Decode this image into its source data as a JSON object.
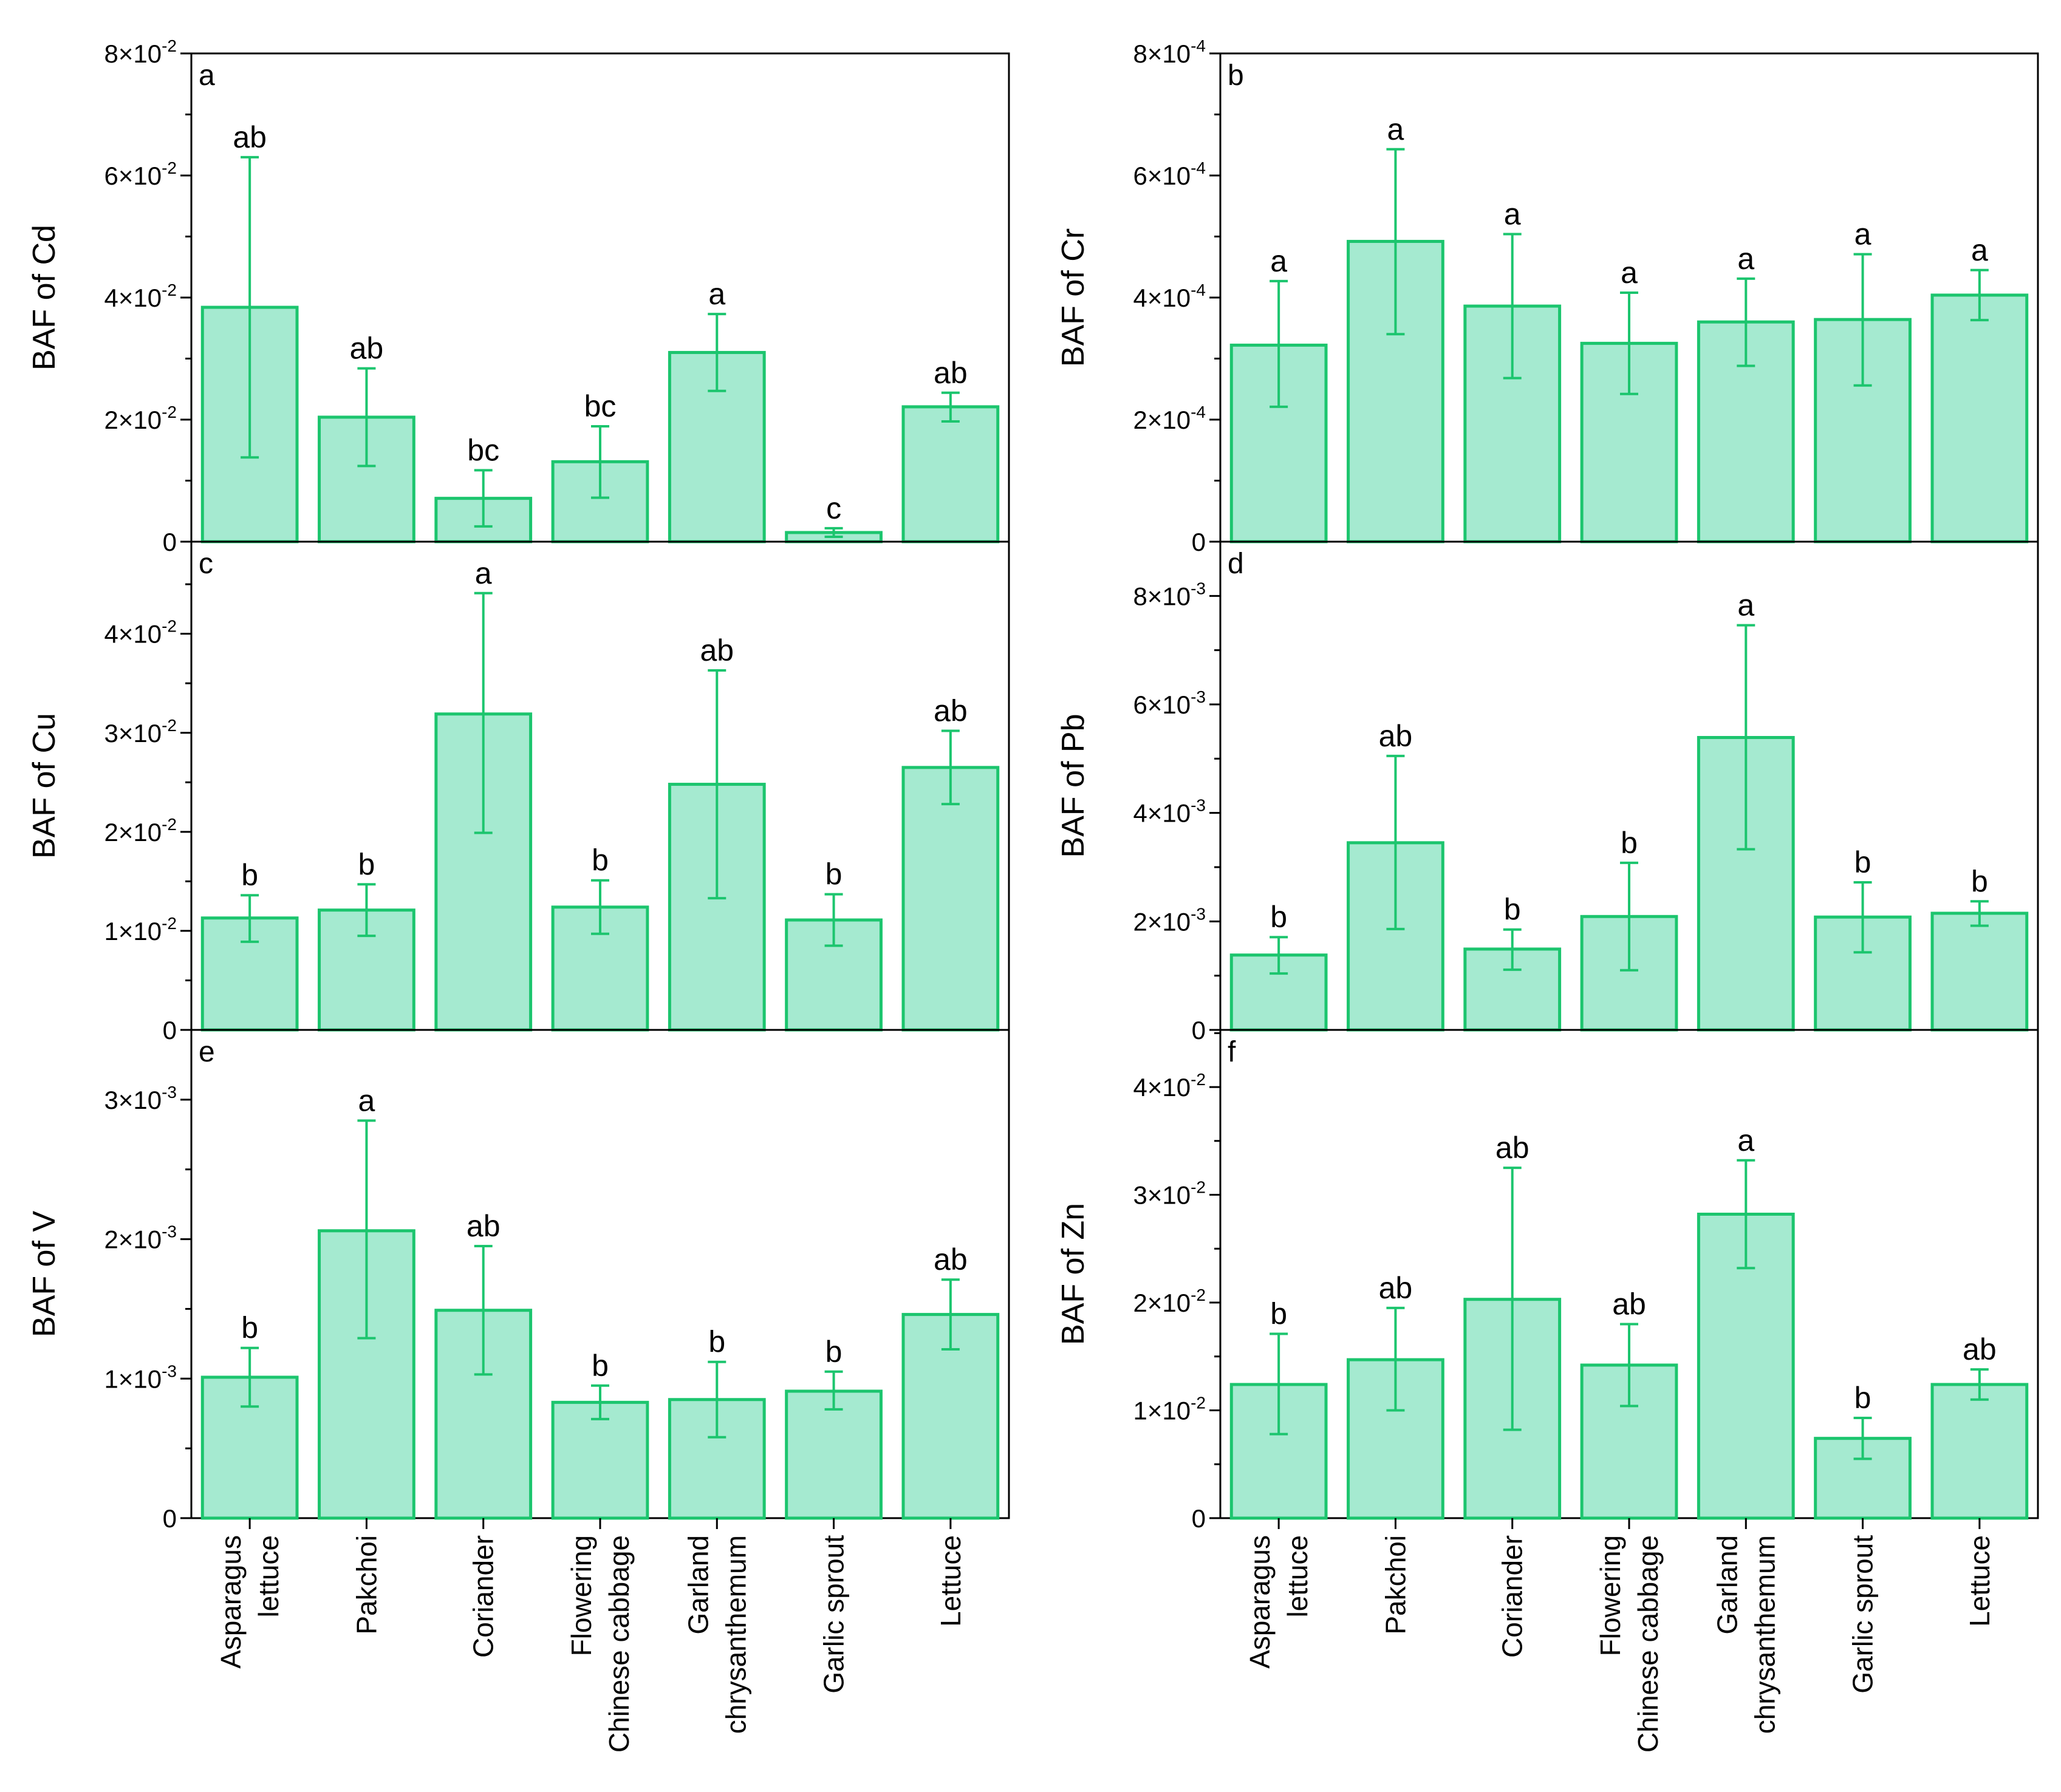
{
  "colors": {
    "bar_fill": "#a5ead0",
    "bar_stroke": "#1cc56e",
    "axis": "#000000"
  },
  "x_categories": [
    [
      "Asparagus",
      "lettuce"
    ],
    [
      "Pakchoi"
    ],
    [
      "Coriander"
    ],
    [
      "Flowering",
      "Chinese cabbage"
    ],
    [
      "Garland",
      "chrysanthemum"
    ],
    [
      "Garlic sprout"
    ],
    [
      "Lettuce"
    ]
  ],
  "chart_data": [
    {
      "type": "bar",
      "panel": "a",
      "ylabel": "BAF of Cd",
      "ylim": [
        0,
        0.08
      ],
      "yticks": [
        {
          "v": 0,
          "m": "0",
          "e": ""
        },
        {
          "v": 0.02,
          "m": "2×10",
          "e": "-2"
        },
        {
          "v": 0.04,
          "m": "4×10",
          "e": "-2"
        },
        {
          "v": 0.06,
          "m": "6×10",
          "e": "-2"
        },
        {
          "v": 0.08,
          "m": "8×10",
          "e": "-2"
        }
      ],
      "categories": [
        "Asparagus lettuce",
        "Pakchoi",
        "Coriander",
        "Flowering Chinese cabbage",
        "Garland chrysanthemum",
        "Garlic sprout",
        "Lettuce"
      ],
      "values": [
        0.0384,
        0.0204,
        0.0071,
        0.0131,
        0.031,
        0.0015,
        0.0221
      ],
      "error_low": [
        0.0138,
        0.0124,
        0.0025,
        0.0072,
        0.0247,
        0.0008,
        0.0197
      ],
      "error_high": [
        0.063,
        0.0284,
        0.0117,
        0.0189,
        0.0373,
        0.0022,
        0.0244
      ],
      "significance": [
        "ab",
        "ab",
        "bc",
        "bc",
        "a",
        "c",
        "ab"
      ]
    },
    {
      "type": "bar",
      "panel": "b",
      "ylabel": "BAF of Cr",
      "ylim": [
        0,
        0.0008
      ],
      "yticks": [
        {
          "v": 0,
          "m": "0",
          "e": ""
        },
        {
          "v": 0.0002,
          "m": "2×10",
          "e": "-4"
        },
        {
          "v": 0.0004,
          "m": "4×10",
          "e": "-4"
        },
        {
          "v": 0.0006,
          "m": "6×10",
          "e": "-4"
        },
        {
          "v": 0.0008,
          "m": "8×10",
          "e": "-4"
        }
      ],
      "categories": [
        "Asparagus lettuce",
        "Pakchoi",
        "Coriander",
        "Flowering Chinese cabbage",
        "Garland chrysanthemum",
        "Garlic sprout",
        "Lettuce"
      ],
      "values": [
        0.000322,
        0.000492,
        0.000386,
        0.000325,
        0.00036,
        0.000364,
        0.000404
      ],
      "error_low": [
        0.000221,
        0.00034,
        0.000268,
        0.000242,
        0.000288,
        0.000256,
        0.000363
      ],
      "error_high": [
        0.000427,
        0.000643,
        0.000504,
        0.000408,
        0.000431,
        0.000471,
        0.000445
      ],
      "significance": [
        "a",
        "a",
        "a",
        "a",
        "a",
        "a",
        "a"
      ]
    },
    {
      "type": "bar",
      "panel": "c",
      "ylabel": "BAF of Cu",
      "ylim": [
        0,
        0.0493
      ],
      "yticks": [
        {
          "v": 0,
          "m": "0",
          "e": ""
        },
        {
          "v": 0.01,
          "m": "1×10",
          "e": "-2"
        },
        {
          "v": 0.02,
          "m": "2×10",
          "e": "-2"
        },
        {
          "v": 0.03,
          "m": "3×10",
          "e": "-2"
        },
        {
          "v": 0.04,
          "m": "4×10",
          "e": "-2"
        }
      ],
      "categories": [
        "Asparagus lettuce",
        "Pakchoi",
        "Coriander",
        "Flowering Chinese cabbage",
        "Garland chrysanthemum",
        "Garlic sprout",
        "Lettuce"
      ],
      "values": [
        0.0113,
        0.0121,
        0.0319,
        0.0124,
        0.0248,
        0.0111,
        0.0265
      ],
      "error_low": [
        0.0089,
        0.0095,
        0.0199,
        0.0097,
        0.0133,
        0.0085,
        0.0228
      ],
      "error_high": [
        0.0136,
        0.0147,
        0.0441,
        0.0151,
        0.0363,
        0.0137,
        0.0302
      ],
      "significance": [
        "b",
        "b",
        "a",
        "b",
        "ab",
        "b",
        "ab"
      ]
    },
    {
      "type": "bar",
      "panel": "d",
      "ylabel": "BAF of Pb",
      "ylim": [
        0,
        0.009
      ],
      "yticks": [
        {
          "v": 0,
          "m": "0",
          "e": ""
        },
        {
          "v": 0.002,
          "m": "2×10",
          "e": "-3"
        },
        {
          "v": 0.004,
          "m": "4×10",
          "e": "-3"
        },
        {
          "v": 0.006,
          "m": "6×10",
          "e": "-3"
        },
        {
          "v": 0.008,
          "m": "8×10",
          "e": "-3"
        }
      ],
      "categories": [
        "Asparagus lettuce",
        "Pakchoi",
        "Coriander",
        "Flowering Chinese cabbage",
        "Garland chrysanthemum",
        "Garlic sprout",
        "Lettuce"
      ],
      "values": [
        0.00138,
        0.00345,
        0.00149,
        0.00209,
        0.00539,
        0.00208,
        0.00215
      ],
      "error_low": [
        0.00104,
        0.00186,
        0.00111,
        0.0011,
        0.00333,
        0.00143,
        0.00192
      ],
      "error_high": [
        0.00171,
        0.00505,
        0.00185,
        0.00308,
        0.00746,
        0.00272,
        0.00237
      ],
      "significance": [
        "b",
        "ab",
        "b",
        "b",
        "a",
        "b",
        "b"
      ]
    },
    {
      "type": "bar",
      "panel": "e",
      "ylabel": "BAF of V",
      "ylim": [
        0,
        0.0035
      ],
      "yticks": [
        {
          "v": 0,
          "m": "0",
          "e": ""
        },
        {
          "v": 0.001,
          "m": "1×10",
          "e": "-3"
        },
        {
          "v": 0.002,
          "m": "2×10",
          "e": "-3"
        },
        {
          "v": 0.003,
          "m": "3×10",
          "e": "-3"
        }
      ],
      "categories": [
        "Asparagus lettuce",
        "Pakchoi",
        "Coriander",
        "Flowering Chinese cabbage",
        "Garland chrysanthemum",
        "Garlic sprout",
        "Lettuce"
      ],
      "values": [
        0.00101,
        0.00206,
        0.00149,
        0.00083,
        0.00085,
        0.00091,
        0.00146
      ],
      "error_low": [
        0.0008,
        0.00129,
        0.00103,
        0.00071,
        0.00058,
        0.00078,
        0.00121
      ],
      "error_high": [
        0.00122,
        0.00285,
        0.00195,
        0.00095,
        0.00112,
        0.00105,
        0.00171
      ],
      "significance": [
        "b",
        "a",
        "ab",
        "b",
        "b",
        "b",
        "ab"
      ]
    },
    {
      "type": "bar",
      "panel": "f",
      "ylabel": "BAF of Zn",
      "ylim": [
        0,
        0.0453
      ],
      "yticks": [
        {
          "v": 0,
          "m": "0",
          "e": ""
        },
        {
          "v": 0.01,
          "m": "1×10",
          "e": "-2"
        },
        {
          "v": 0.02,
          "m": "2×10",
          "e": "-2"
        },
        {
          "v": 0.03,
          "m": "3×10",
          "e": "-2"
        },
        {
          "v": 0.04,
          "m": "4×10",
          "e": "-2"
        }
      ],
      "categories": [
        "Asparagus lettuce",
        "Pakchoi",
        "Coriander",
        "Flowering Chinese cabbage",
        "Garland chrysanthemum",
        "Garlic sprout",
        "Lettuce"
      ],
      "values": [
        0.0124,
        0.0147,
        0.0203,
        0.0142,
        0.0282,
        0.0074,
        0.0124
      ],
      "error_low": [
        0.0078,
        0.01,
        0.0082,
        0.0104,
        0.0232,
        0.0055,
        0.011
      ],
      "error_high": [
        0.0171,
        0.0195,
        0.0325,
        0.018,
        0.0332,
        0.0093,
        0.0138
      ],
      "significance": [
        "b",
        "ab",
        "ab",
        "ab",
        "a",
        "b",
        "ab"
      ]
    }
  ]
}
